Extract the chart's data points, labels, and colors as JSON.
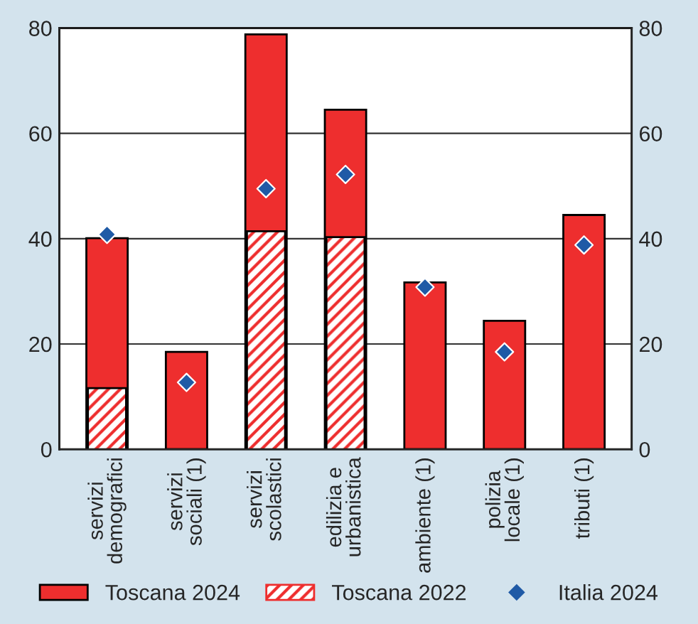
{
  "chart_data": {
    "type": "bar",
    "categories": [
      "servizi\ndemografici",
      "servizi\nsociali (1)",
      "servizi\nscolastici",
      "edilizia e\nurbanistica",
      "ambiente (1)",
      "polizia\nlocale (1)",
      "tributi (1)"
    ],
    "series": [
      {
        "name": "Toscana 2024",
        "color": "#ee2e2e",
        "values": [
          40.1,
          18.5,
          78.8,
          64.5,
          31.7,
          24.4,
          44.5
        ]
      },
      {
        "name": "Toscana 2022",
        "color": "#ee2e2e",
        "values": [
          11.6,
          null,
          41.4,
          40.3,
          null,
          null,
          null
        ]
      },
      {
        "name": "Italia 2024",
        "type": "scatter",
        "color": "#1f5aa6",
        "marker": "diamond",
        "values": [
          40.8,
          12.7,
          49.5,
          52.2,
          30.8,
          18.5,
          38.8
        ]
      }
    ],
    "ylim": [
      0,
      80
    ],
    "yticks": [
      0,
      20,
      40,
      60,
      80
    ],
    "y2lim": [
      0,
      80
    ],
    "y2ticks": [
      0,
      20,
      40,
      60,
      80
    ],
    "grid": "y",
    "legend": "bottom"
  }
}
